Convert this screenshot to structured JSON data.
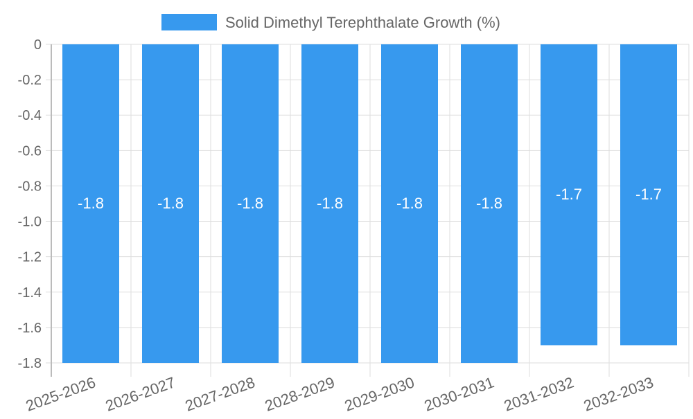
{
  "chart_data": {
    "type": "bar",
    "title": "",
    "legend": {
      "label": "Solid Dimethyl Terephthalate Growth (%)",
      "position": "top"
    },
    "categories": [
      "2025-2026",
      "2026-2027",
      "2027-2028",
      "2028-2029",
      "2029-2030",
      "2030-2031",
      "2031-2032",
      "2032-2033"
    ],
    "values": [
      -1.8,
      -1.8,
      -1.8,
      -1.8,
      -1.8,
      -1.8,
      -1.7,
      -1.7
    ],
    "data_labels": [
      "-1.8",
      "-1.8",
      "-1.8",
      "-1.8",
      "-1.8",
      "-1.8",
      "-1.7",
      "-1.7"
    ],
    "xlabel": "",
    "ylabel": "",
    "ylim": [
      -1.8,
      0
    ],
    "yticks": [
      "0",
      "-0.2",
      "-0.4",
      "-0.6",
      "-0.8",
      "-1.0",
      "-1.2",
      "-1.4",
      "-1.6",
      "-1.8"
    ],
    "grid": true,
    "color": "#3799ee"
  }
}
